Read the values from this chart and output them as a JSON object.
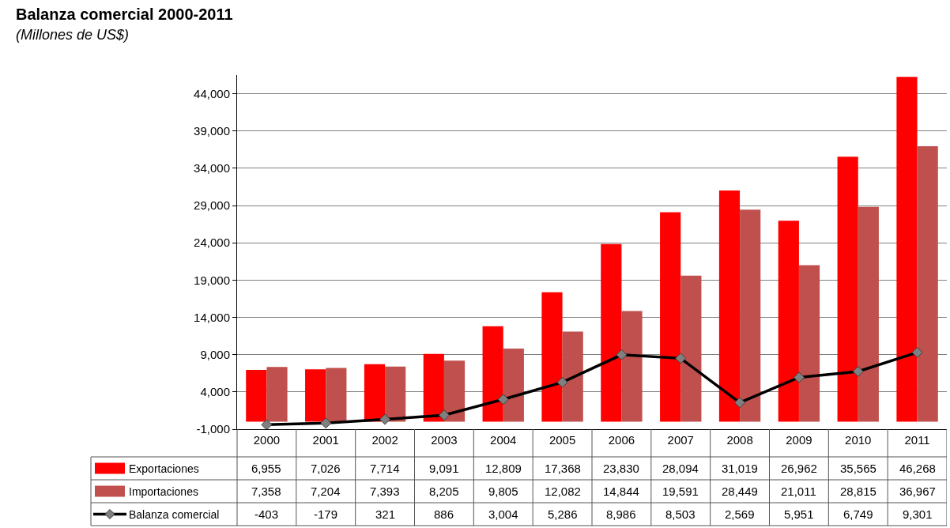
{
  "chart_data": {
    "type": "bar",
    "title": "Balanza comercial 2000-2011",
    "subtitle": "(Millones de US$)",
    "categories": [
      "2000",
      "2001",
      "2002",
      "2003",
      "2004",
      "2005",
      "2006",
      "2007",
      "2008",
      "2009",
      "2010",
      "2011"
    ],
    "series": [
      {
        "name": "Exportaciones",
        "color": "#ff0000",
        "values": [
          6955,
          7026,
          7714,
          9091,
          12809,
          17368,
          23830,
          28094,
          31019,
          26962,
          35565,
          46268
        ],
        "value_labels": [
          "6,955",
          "7,026",
          "7,714",
          "9,091",
          "12,809",
          "17,368",
          "23,830",
          "28,094",
          "31,019",
          "26,962",
          "35,565",
          "46,268"
        ]
      },
      {
        "name": "Importaciones",
        "color": "#c0504d",
        "values": [
          7358,
          7204,
          7393,
          8205,
          9805,
          12082,
          14844,
          19591,
          28449,
          21011,
          28815,
          36967
        ],
        "value_labels": [
          "7,358",
          "7,204",
          "7,393",
          "8,205",
          "9,805",
          "12,082",
          "14,844",
          "19,591",
          "28,449",
          "21,011",
          "28,815",
          "36,967"
        ]
      },
      {
        "name": "Balanza comercial",
        "type": "line",
        "color": "#000000",
        "marker": "diamond",
        "values": [
          -403,
          -179,
          321,
          886,
          3004,
          5286,
          8986,
          8503,
          2569,
          5951,
          6749,
          9301
        ],
        "value_labels": [
          "-403",
          "-179",
          "321",
          "886",
          "3,004",
          "5,286",
          "8,986",
          "8,503",
          "2,569",
          "5,951",
          "6,749",
          "9,301"
        ]
      }
    ],
    "ylim": [
      -1000,
      46500
    ],
    "yticks": [
      {
        "value": -1000,
        "label": "-1,000"
      },
      {
        "value": 4000,
        "label": "4,000"
      },
      {
        "value": 9000,
        "label": "9,000"
      },
      {
        "value": 14000,
        "label": "14,000"
      },
      {
        "value": 19000,
        "label": "19,000"
      },
      {
        "value": 24000,
        "label": "24,000"
      },
      {
        "value": 29000,
        "label": "29,000"
      },
      {
        "value": 34000,
        "label": "34,000"
      },
      {
        "value": 39000,
        "label": "39,000"
      },
      {
        "value": 44000,
        "label": "44,000"
      }
    ],
    "grid": "y",
    "legend": "bottom"
  }
}
